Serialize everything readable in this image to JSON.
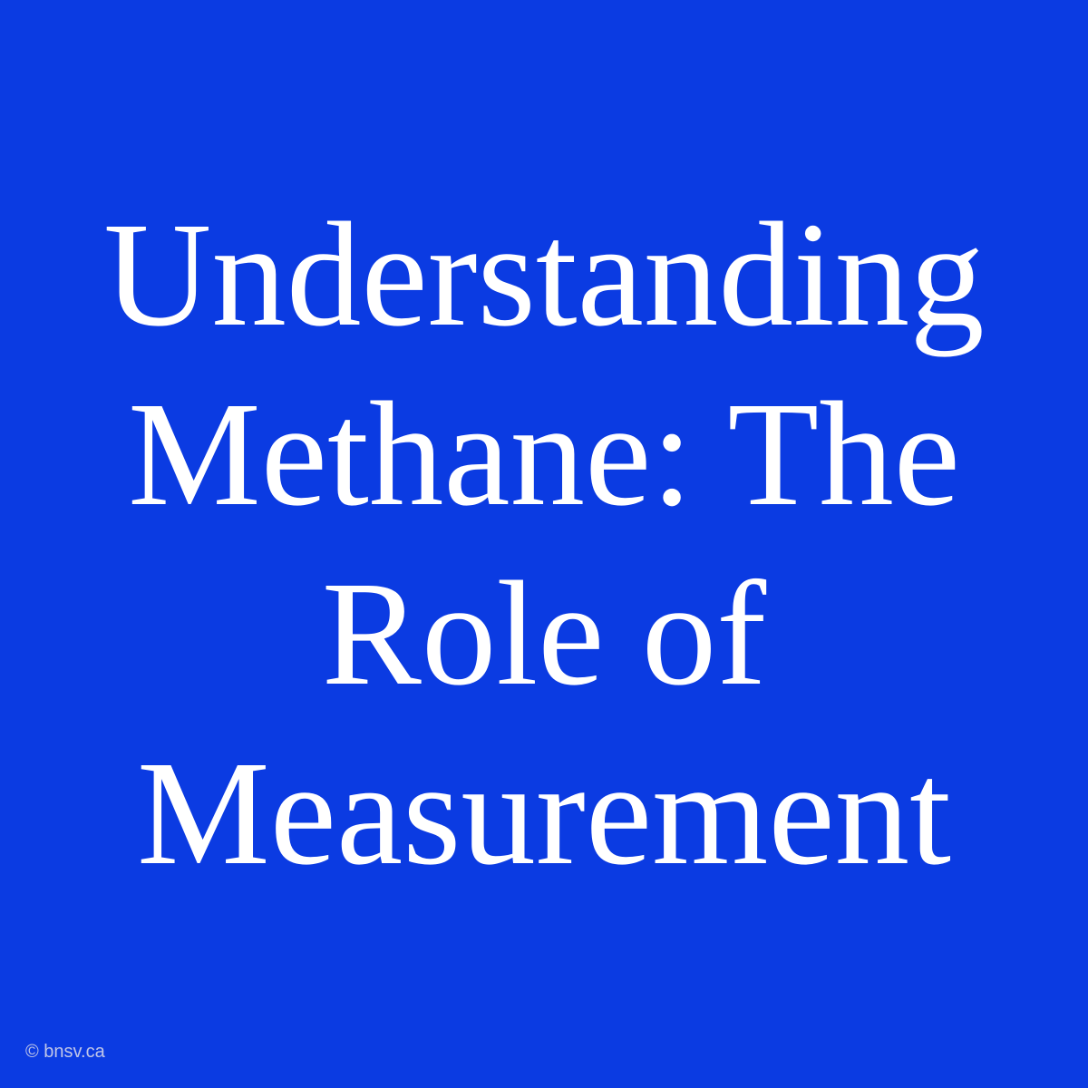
{
  "slide": {
    "title": "Understanding Methane: The Role of Measurement",
    "credit": "© bnsv.ca",
    "background_color": "#0b3be2",
    "text_color": "#ffffff",
    "credit_color": "#c0c6e8",
    "title_fontsize": 165,
    "credit_fontsize": 20,
    "font_family": "Georgia, serif"
  }
}
